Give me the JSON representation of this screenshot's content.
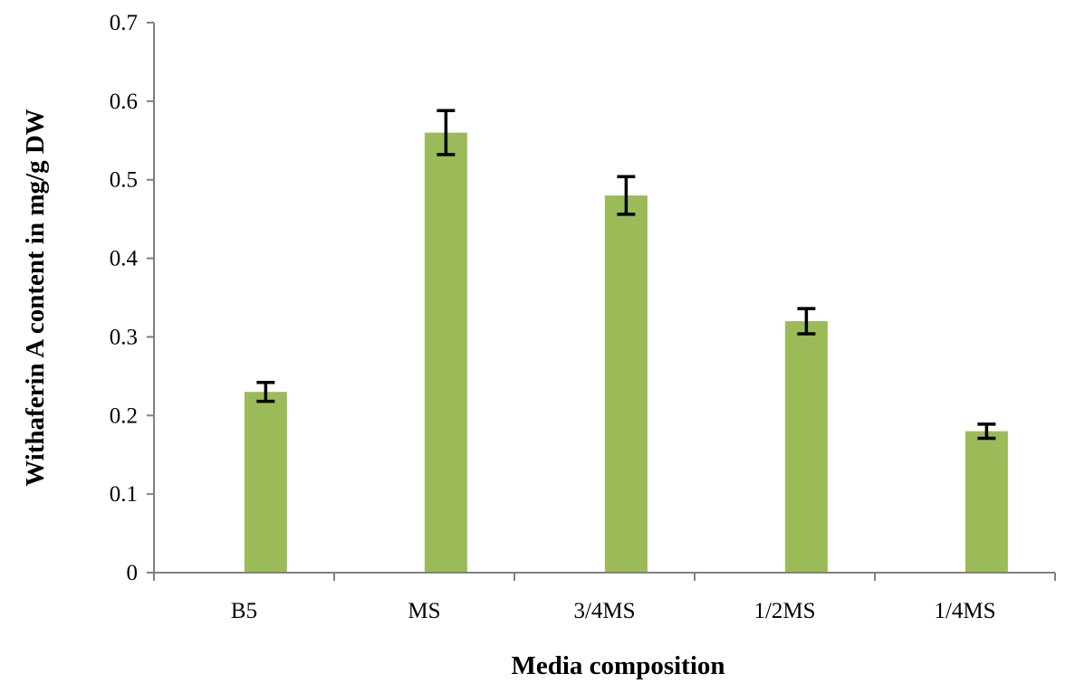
{
  "chart_data": {
    "type": "bar",
    "categories": [
      "B5",
      "MS",
      "3/4MS",
      "1/2MS",
      "1/4MS"
    ],
    "values": [
      0.23,
      0.56,
      0.48,
      0.32,
      0.18
    ],
    "errors": [
      0.012,
      0.028,
      0.024,
      0.016,
      0.009
    ],
    "title": "",
    "xlabel": "Media composition",
    "ylabel": "Withaferin  A content in mg/g DW",
    "ylim": [
      0,
      0.7
    ],
    "yticks": [
      "0",
      "0.1",
      "0.2",
      "0.3",
      "0.4",
      "0.5",
      "0.6",
      "0.7"
    ],
    "ytick_values": [
      0,
      0.1,
      0.2,
      0.3,
      0.4,
      0.5,
      0.6,
      0.7
    ],
    "grid": false,
    "legend": "none",
    "bar_color": "#9bbb59",
    "axis_color": "#808080",
    "error_bar_color": "#000000"
  }
}
